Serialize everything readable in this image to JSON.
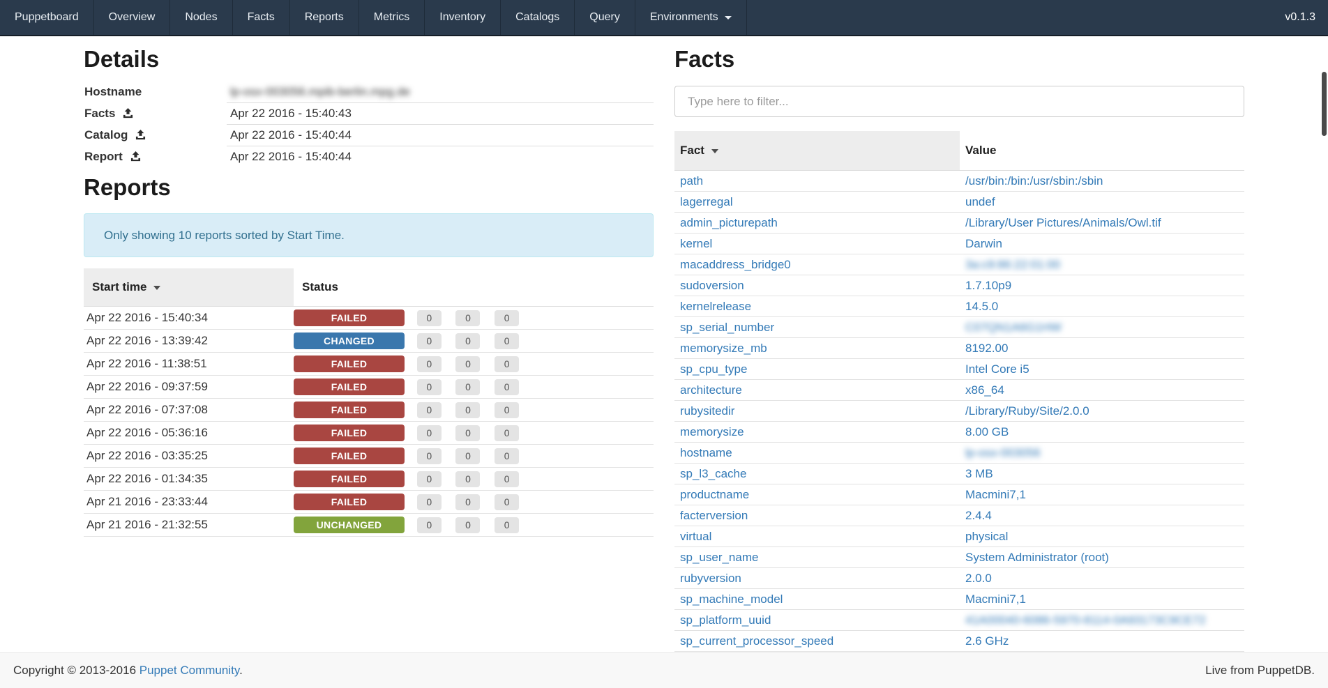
{
  "navbar": {
    "brand": "Puppetboard",
    "items": [
      {
        "label": "Overview"
      },
      {
        "label": "Nodes"
      },
      {
        "label": "Facts"
      },
      {
        "label": "Reports"
      },
      {
        "label": "Metrics"
      },
      {
        "label": "Inventory"
      },
      {
        "label": "Catalogs"
      },
      {
        "label": "Query"
      },
      {
        "label": "Environments",
        "dropdown": true
      }
    ],
    "version": "v0.1.3"
  },
  "details": {
    "title": "Details",
    "rows": [
      {
        "label": "Hostname",
        "has_upload_icon": false,
        "value": "lp-osx-003056.mpib-berlin.mpg.de",
        "blurred": true
      },
      {
        "label": "Facts",
        "has_upload_icon": true,
        "value": "Apr 22 2016 - 15:40:43",
        "blurred": false
      },
      {
        "label": "Catalog",
        "has_upload_icon": true,
        "value": "Apr 22 2016 - 15:40:44",
        "blurred": false
      },
      {
        "label": "Report",
        "has_upload_icon": true,
        "value": "Apr 22 2016 - 15:40:44",
        "blurred": false
      }
    ]
  },
  "reports": {
    "title": "Reports",
    "notice": "Only showing 10 reports sorted by Start Time.",
    "columns": [
      "Start time",
      "Status"
    ],
    "status_colors": {
      "FAILED": "#a94641",
      "CHANGED": "#3a77ad",
      "UNCHANGED": "#82a43c"
    },
    "rows": [
      {
        "start_time": "Apr 22 2016 - 15:40:34",
        "status": "FAILED",
        "counts": [
          "0",
          "0",
          "0"
        ]
      },
      {
        "start_time": "Apr 22 2016 - 13:39:42",
        "status": "CHANGED",
        "counts": [
          "0",
          "0",
          "0"
        ]
      },
      {
        "start_time": "Apr 22 2016 - 11:38:51",
        "status": "FAILED",
        "counts": [
          "0",
          "0",
          "0"
        ]
      },
      {
        "start_time": "Apr 22 2016 - 09:37:59",
        "status": "FAILED",
        "counts": [
          "0",
          "0",
          "0"
        ]
      },
      {
        "start_time": "Apr 22 2016 - 07:37:08",
        "status": "FAILED",
        "counts": [
          "0",
          "0",
          "0"
        ]
      },
      {
        "start_time": "Apr 22 2016 - 05:36:16",
        "status": "FAILED",
        "counts": [
          "0",
          "0",
          "0"
        ]
      },
      {
        "start_time": "Apr 22 2016 - 03:35:25",
        "status": "FAILED",
        "counts": [
          "0",
          "0",
          "0"
        ]
      },
      {
        "start_time": "Apr 22 2016 - 01:34:35",
        "status": "FAILED",
        "counts": [
          "0",
          "0",
          "0"
        ]
      },
      {
        "start_time": "Apr 21 2016 - 23:33:44",
        "status": "FAILED",
        "counts": [
          "0",
          "0",
          "0"
        ]
      },
      {
        "start_time": "Apr 21 2016 - 21:32:55",
        "status": "UNCHANGED",
        "counts": [
          "0",
          "0",
          "0"
        ]
      }
    ]
  },
  "facts": {
    "title": "Facts",
    "filter_placeholder": "Type here to filter...",
    "columns": [
      "Fact",
      "Value"
    ],
    "rows": [
      {
        "fact": "path",
        "value": "/usr/bin:/bin:/usr/sbin:/sbin",
        "blurred": false
      },
      {
        "fact": "lagerregal",
        "value": "undef",
        "blurred": false
      },
      {
        "fact": "admin_picturepath",
        "value": "/Library/User Pictures/Animals/Owl.tif",
        "blurred": false
      },
      {
        "fact": "kernel",
        "value": "Darwin",
        "blurred": false
      },
      {
        "fact": "macaddress_bridge0",
        "value": "3a:c9:86:22:01:00",
        "blurred": true
      },
      {
        "fact": "sudoversion",
        "value": "1.7.10p9",
        "blurred": false
      },
      {
        "fact": "kernelrelease",
        "value": "14.5.0",
        "blurred": false
      },
      {
        "fact": "sp_serial_number",
        "value": "C07QN1A6G1HW",
        "blurred": true
      },
      {
        "fact": "memorysize_mb",
        "value": "8192.00",
        "blurred": false
      },
      {
        "fact": "sp_cpu_type",
        "value": "Intel Core i5",
        "blurred": false
      },
      {
        "fact": "architecture",
        "value": "x86_64",
        "blurred": false
      },
      {
        "fact": "rubysitedir",
        "value": "/Library/Ruby/Site/2.0.0",
        "blurred": false
      },
      {
        "fact": "memorysize",
        "value": "8.00 GB",
        "blurred": false
      },
      {
        "fact": "hostname",
        "value": "lp-osx-003056",
        "blurred": true
      },
      {
        "fact": "sp_l3_cache",
        "value": "3 MB",
        "blurred": false
      },
      {
        "fact": "productname",
        "value": "Macmini7,1",
        "blurred": false
      },
      {
        "fact": "facterversion",
        "value": "2.4.4",
        "blurred": false
      },
      {
        "fact": "virtual",
        "value": "physical",
        "blurred": false
      },
      {
        "fact": "sp_user_name",
        "value": "System Administrator (root)",
        "blurred": false
      },
      {
        "fact": "rubyversion",
        "value": "2.0.0",
        "blurred": false
      },
      {
        "fact": "sp_machine_model",
        "value": "Macmini7,1",
        "blurred": false
      },
      {
        "fact": "sp_platform_uuid",
        "value": "41A00040-6086-5970-8114-0A93173C9CE72",
        "blurred": true
      },
      {
        "fact": "sp_current_processor_speed",
        "value": "2.6 GHz",
        "blurred": false
      }
    ]
  },
  "footer": {
    "copyright_prefix": "Copyright © 2013-2016 ",
    "copyright_link": "Puppet Community",
    "copyright_suffix": ".",
    "right": "Live from PuppetDB."
  }
}
